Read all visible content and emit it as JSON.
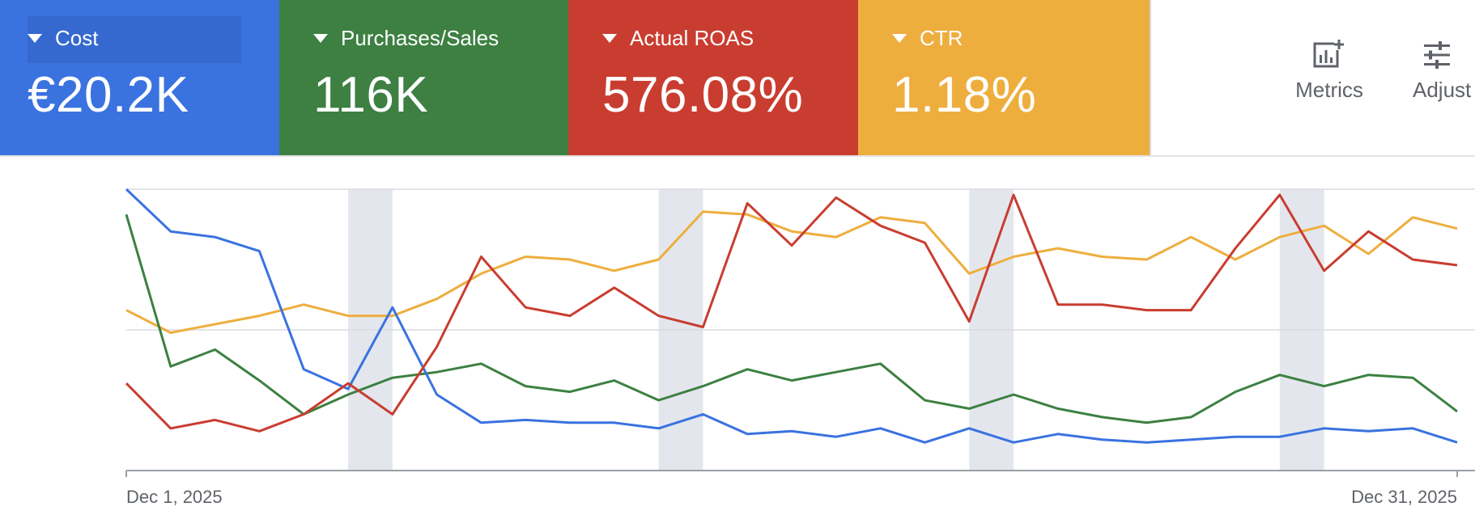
{
  "scorecards": [
    {
      "label": "Cost",
      "value": "€20.2K",
      "color": "#3a72e0"
    },
    {
      "label": "Purchases/Sales",
      "value": "116K",
      "color": "#3d8042"
    },
    {
      "label": "Actual ROAS",
      "value": "576.08%",
      "color": "#c93d31"
    },
    {
      "label": "CTR",
      "value": "1.18%",
      "color": "#eeae3e"
    }
  ],
  "toolbar": {
    "metrics_label": "Metrics",
    "adjust_label": "Adjust"
  },
  "chart_data": {
    "type": "line",
    "x_start_label": "Dec 1, 2025",
    "x_end_label": "Dec 31, 2025",
    "x": [
      1,
      2,
      3,
      4,
      5,
      6,
      7,
      8,
      9,
      10,
      11,
      12,
      13,
      14,
      15,
      16,
      17,
      18,
      19,
      20,
      21,
      22,
      23,
      24,
      25,
      26,
      27,
      28,
      29,
      30,
      31
    ],
    "weekend_bands": [
      [
        6,
        7
      ],
      [
        13,
        14
      ],
      [
        20,
        21
      ],
      [
        27,
        28
      ]
    ],
    "grid": true,
    "y_scale": "each series on its own relative scale (0–100 of chart height)",
    "series": [
      {
        "color": "#3a72e0",
        "values": [
          100,
          85,
          83,
          78,
          36,
          29,
          58,
          27,
          17,
          18,
          17,
          17,
          15,
          20,
          13,
          14,
          12,
          15,
          10,
          15,
          10,
          13,
          11,
          10,
          11,
          12,
          12,
          15,
          14,
          15,
          10
        ]
      },
      {
        "color": "#3d8042",
        "values": [
          91,
          37,
          43,
          32,
          20,
          27,
          33,
          35,
          38,
          30,
          28,
          32,
          25,
          30,
          36,
          32,
          35,
          38,
          25,
          22,
          27,
          22,
          19,
          17,
          19,
          28,
          34,
          30,
          34,
          33,
          21
        ]
      },
      {
        "color": "#c93d31",
        "values": [
          31,
          15,
          18,
          14,
          20,
          31,
          20,
          44,
          76,
          58,
          55,
          65,
          55,
          51,
          95,
          80,
          97,
          87,
          81,
          53,
          98,
          59,
          59,
          57,
          57,
          79,
          98,
          71,
          85,
          75,
          73
        ]
      },
      {
        "color": "#eeae3e",
        "values": [
          57,
          49,
          52,
          55,
          59,
          55,
          55,
          61,
          70,
          76,
          75,
          71,
          75,
          92,
          91,
          85,
          83,
          90,
          88,
          70,
          76,
          79,
          76,
          75,
          83,
          75,
          83,
          87,
          77,
          90,
          86
        ]
      }
    ]
  }
}
